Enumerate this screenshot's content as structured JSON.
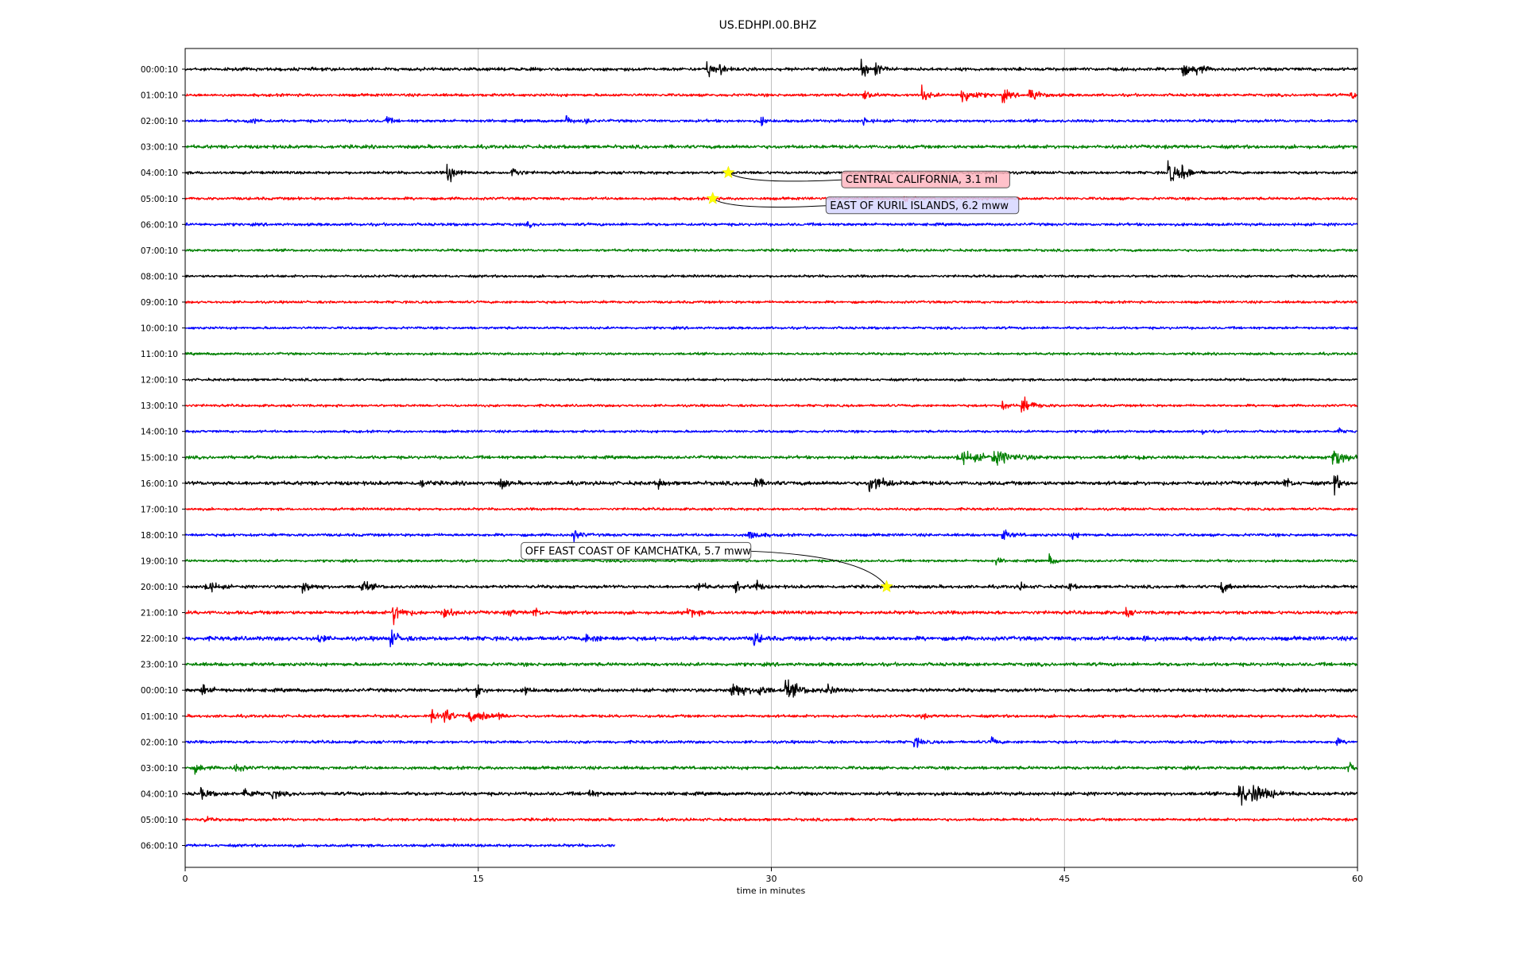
{
  "chart_data": {
    "type": "line",
    "title": "US.EDHPI.00.BHZ",
    "xlabel": "time in minutes",
    "ylabel": "",
    "xlim": [
      0,
      60
    ],
    "xticks": [
      0,
      15,
      30,
      45,
      60
    ],
    "grid": "vertical",
    "colors": [
      "#000000",
      "#ff0000",
      "#0000ff",
      "#008000"
    ],
    "rows": [
      {
        "label": "00:00:10",
        "end": 60,
        "noise": 1.0,
        "events": [
          [
            26.7,
            11,
            0.25
          ],
          [
            27.3,
            8,
            0.2
          ],
          [
            34.6,
            9,
            0.3
          ],
          [
            35.3,
            7,
            0.25
          ],
          [
            51.0,
            7,
            0.4
          ],
          [
            51.7,
            6,
            0.3
          ]
        ]
      },
      {
        "label": "01:00:10",
        "end": 60,
        "noise": 0.9,
        "events": [
          [
            34.7,
            7,
            0.3
          ],
          [
            37.7,
            8,
            0.3
          ],
          [
            39.7,
            10,
            0.5
          ],
          [
            41.8,
            7,
            0.3
          ],
          [
            43.2,
            8,
            0.4
          ],
          [
            59.6,
            5,
            0.2
          ]
        ]
      },
      {
        "label": "02:00:10",
        "end": 60,
        "noise": 0.9,
        "events": [
          [
            3.2,
            5,
            0.3
          ],
          [
            10.2,
            7,
            0.2
          ],
          [
            19.5,
            5,
            0.2
          ],
          [
            20.4,
            4,
            0.2
          ],
          [
            29.4,
            6,
            0.2
          ],
          [
            34.7,
            6,
            0.2
          ]
        ]
      },
      {
        "label": "03:00:10",
        "end": 60,
        "noise": 1.1,
        "events": []
      },
      {
        "label": "04:00:10",
        "end": 60,
        "noise": 0.9,
        "events": [
          [
            13.4,
            13,
            0.3
          ],
          [
            16.7,
            7,
            0.3
          ],
          [
            50.3,
            13,
            0.4
          ],
          [
            51.0,
            6,
            0.4
          ]
        ]
      },
      {
        "label": "05:00:10",
        "end": 60,
        "noise": 0.9,
        "events": [
          [
            36.8,
            4,
            0.2
          ]
        ]
      },
      {
        "label": "06:00:10",
        "end": 60,
        "noise": 0.9,
        "events": [
          [
            17.5,
            3,
            0.2
          ]
        ]
      },
      {
        "label": "07:00:10",
        "end": 60,
        "noise": 0.8,
        "events": []
      },
      {
        "label": "08:00:10",
        "end": 60,
        "noise": 0.8,
        "events": []
      },
      {
        "label": "09:00:10",
        "end": 60,
        "noise": 0.8,
        "events": []
      },
      {
        "label": "10:00:10",
        "end": 60,
        "noise": 0.8,
        "events": []
      },
      {
        "label": "11:00:10",
        "end": 60,
        "noise": 0.8,
        "events": []
      },
      {
        "label": "12:00:10",
        "end": 60,
        "noise": 0.8,
        "events": []
      },
      {
        "label": "13:00:10",
        "end": 60,
        "noise": 0.8,
        "events": [
          [
            41.8,
            4,
            0.3
          ],
          [
            42.8,
            8,
            0.5
          ]
        ]
      },
      {
        "label": "14:00:10",
        "end": 60,
        "noise": 0.8,
        "events": [
          [
            52.0,
            3,
            0.2
          ],
          [
            59.0,
            4,
            0.2
          ]
        ]
      },
      {
        "label": "15:00:10",
        "end": 60,
        "noise": 1.0,
        "events": [
          [
            39.5,
            7,
            1.0
          ],
          [
            41.3,
            6,
            1.0
          ],
          [
            48.8,
            4,
            0.2
          ],
          [
            58.7,
            14,
            0.4
          ]
        ]
      },
      {
        "label": "16:00:10",
        "end": 60,
        "noise": 1.2,
        "events": [
          [
            12.0,
            4,
            0.3
          ],
          [
            16.1,
            9,
            0.2
          ],
          [
            24.2,
            7,
            0.2
          ],
          [
            29.0,
            5,
            0.5
          ],
          [
            35.0,
            10,
            0.6
          ],
          [
            56.2,
            10,
            0.2
          ],
          [
            58.8,
            12,
            0.2
          ]
        ]
      },
      {
        "label": "17:00:10",
        "end": 60,
        "noise": 0.8,
        "events": []
      },
      {
        "label": "18:00:10",
        "end": 60,
        "noise": 0.9,
        "events": [
          [
            19.8,
            7,
            0.3
          ],
          [
            28.8,
            6,
            0.4
          ],
          [
            41.8,
            5,
            0.4
          ],
          [
            45.3,
            4,
            0.3
          ]
        ]
      },
      {
        "label": "19:00:10",
        "end": 60,
        "noise": 0.8,
        "events": [
          [
            41.5,
            4,
            0.2
          ],
          [
            44.2,
            7,
            0.2
          ]
        ]
      },
      {
        "label": "20:00:10",
        "end": 60,
        "noise": 1.0,
        "events": [
          [
            1.0,
            8,
            0.4
          ],
          [
            6.0,
            6,
            0.4
          ],
          [
            9.0,
            6,
            0.4
          ],
          [
            26.2,
            6,
            0.3
          ],
          [
            28.1,
            7,
            0.3
          ],
          [
            29.1,
            12,
            0.2
          ],
          [
            42.7,
            5,
            0.2
          ],
          [
            45.2,
            5,
            0.2
          ],
          [
            53.0,
            7,
            0.3
          ]
        ]
      },
      {
        "label": "21:00:10",
        "end": 60,
        "noise": 1.1,
        "events": [
          [
            10.6,
            12,
            0.4
          ],
          [
            13.1,
            10,
            0.3
          ],
          [
            16.5,
            5,
            0.2
          ],
          [
            17.8,
            7,
            0.2
          ],
          [
            25.7,
            5,
            0.4
          ],
          [
            48.1,
            6,
            0.2
          ]
        ]
      },
      {
        "label": "22:00:10",
        "end": 60,
        "noise": 1.3,
        "events": [
          [
            10.5,
            10,
            0.3
          ],
          [
            6.8,
            6,
            0.2
          ],
          [
            20.5,
            4,
            0.5
          ],
          [
            29.1,
            12,
            0.2
          ],
          [
            49.0,
            4,
            0.3
          ]
        ]
      },
      {
        "label": "23:00:10",
        "end": 60,
        "noise": 1.1,
        "events": []
      },
      {
        "label": "00:00:10",
        "end": 60,
        "noise": 1.1,
        "events": [
          [
            0.8,
            6,
            0.4
          ],
          [
            14.9,
            7,
            0.2
          ],
          [
            17.4,
            5,
            0.2
          ],
          [
            27.9,
            12,
            0.5
          ],
          [
            29.3,
            8,
            0.3
          ],
          [
            30.7,
            9,
            0.7
          ],
          [
            32.8,
            12,
            0.2
          ]
        ]
      },
      {
        "label": "01:00:10",
        "end": 60,
        "noise": 0.9,
        "events": [
          [
            12.6,
            6,
            0.5
          ],
          [
            13.2,
            9,
            0.3
          ],
          [
            14.5,
            6,
            0.4
          ],
          [
            15.1,
            7,
            0.3
          ],
          [
            16.0,
            6,
            0.2
          ],
          [
            37.6,
            4,
            0.2
          ]
        ]
      },
      {
        "label": "02:00:10",
        "end": 60,
        "noise": 0.9,
        "events": [
          [
            37.3,
            6,
            0.3
          ],
          [
            41.2,
            7,
            0.2
          ],
          [
            58.9,
            4,
            0.2
          ]
        ]
      },
      {
        "label": "03:00:10",
        "end": 60,
        "noise": 1.0,
        "events": [
          [
            0.5,
            5,
            0.3
          ],
          [
            2.5,
            6,
            0.3
          ],
          [
            59.5,
            5,
            0.3
          ]
        ]
      },
      {
        "label": "04:00:10",
        "end": 60,
        "noise": 1.1,
        "events": [
          [
            0.8,
            6,
            0.3
          ],
          [
            3.0,
            6,
            0.4
          ],
          [
            4.4,
            5,
            0.3
          ],
          [
            20.5,
            6,
            0.3
          ],
          [
            53.9,
            14,
            0.5
          ],
          [
            54.6,
            7,
            0.8
          ]
        ]
      },
      {
        "label": "05:00:10",
        "end": 60,
        "noise": 0.9,
        "events": [
          [
            1.0,
            3,
            0.2
          ]
        ]
      },
      {
        "label": "06:00:10",
        "end": 22.0,
        "noise": 0.9,
        "events": []
      }
    ],
    "annotations": [
      {
        "text": "CENTRAL CALIFORNIA, 3.1 ml",
        "row": 4,
        "x": 27.8,
        "label_x": 33.8,
        "label_y": 4.4,
        "bg": "#ffb6c1"
      },
      {
        "text": "EAST OF KURIL ISLANDS, 6.2 mww",
        "row": 5,
        "x": 27.0,
        "label_x": 33.0,
        "label_y": 5.4,
        "bg": "#d6d6ff"
      },
      {
        "text": "OFF EAST COAST OF KAMCHATKA, 5.7 mww",
        "row": 20,
        "x": 35.9,
        "label_x": 17.4,
        "label_y": 18.75,
        "bg": "#ffffff"
      }
    ]
  }
}
